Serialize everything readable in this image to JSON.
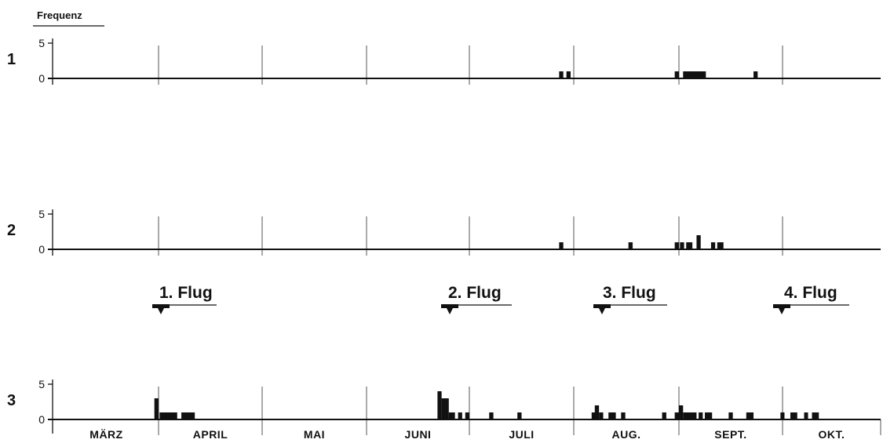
{
  "chart_data": {
    "type": "bar",
    "y_axis_title": "Frequenz",
    "months": [
      "MÄRZ",
      "APRIL",
      "MAI",
      "JUNI",
      "JULI",
      "AUG.",
      "SEPT.",
      "OKT."
    ],
    "flights": [
      "1. Flug",
      "2. Flug",
      "3. Flug",
      "4. Flug"
    ],
    "panels": [
      {
        "label": "1",
        "ylim": [
          0,
          5
        ],
        "yticks": [
          "5",
          "0"
        ],
        "bars": [
          {
            "x": 4.86,
            "w": 0.04,
            "v": 1
          },
          {
            "x": 4.93,
            "w": 0.04,
            "v": 1
          },
          {
            "x": 5.96,
            "w": 0.04,
            "v": 1
          },
          {
            "x": 6.04,
            "w": 0.22,
            "v": 1
          },
          {
            "x": 6.72,
            "w": 0.04,
            "v": 1
          }
        ]
      },
      {
        "label": "2",
        "ylim": [
          0,
          5
        ],
        "yticks": [
          "5",
          "0"
        ],
        "bars": [
          {
            "x": 4.86,
            "w": 0.04,
            "v": 1
          },
          {
            "x": 5.52,
            "w": 0.04,
            "v": 1
          },
          {
            "x": 5.96,
            "w": 0.04,
            "v": 1
          },
          {
            "x": 6.01,
            "w": 0.04,
            "v": 1
          },
          {
            "x": 6.07,
            "w": 0.06,
            "v": 1
          },
          {
            "x": 6.17,
            "w": 0.04,
            "v": 2
          },
          {
            "x": 6.31,
            "w": 0.04,
            "v": 1
          },
          {
            "x": 6.37,
            "w": 0.06,
            "v": 1
          }
        ]
      },
      {
        "label": "3",
        "ylim": [
          0,
          5
        ],
        "yticks": [
          "5",
          "0"
        ],
        "bars": [
          {
            "x": 0.96,
            "w": 0.04,
            "v": 3
          },
          {
            "x": 1.01,
            "w": 0.17,
            "v": 1
          },
          {
            "x": 1.22,
            "w": 0.13,
            "v": 1
          },
          {
            "x": 3.69,
            "w": 0.04,
            "v": 4
          },
          {
            "x": 3.73,
            "w": 0.07,
            "v": 3
          },
          {
            "x": 3.8,
            "w": 0.06,
            "v": 1
          },
          {
            "x": 3.89,
            "w": 0.04,
            "v": 1
          },
          {
            "x": 3.96,
            "w": 0.04,
            "v": 1
          },
          {
            "x": 4.19,
            "w": 0.04,
            "v": 1
          },
          {
            "x": 4.46,
            "w": 0.04,
            "v": 1
          },
          {
            "x": 5.17,
            "w": 0.04,
            "v": 1
          },
          {
            "x": 5.2,
            "w": 0.04,
            "v": 2
          },
          {
            "x": 5.24,
            "w": 0.04,
            "v": 1
          },
          {
            "x": 5.33,
            "w": 0.07,
            "v": 1
          },
          {
            "x": 5.45,
            "w": 0.04,
            "v": 1
          },
          {
            "x": 5.84,
            "w": 0.04,
            "v": 1
          },
          {
            "x": 5.96,
            "w": 0.04,
            "v": 1
          },
          {
            "x": 6.0,
            "w": 0.04,
            "v": 2
          },
          {
            "x": 6.04,
            "w": 0.13,
            "v": 1
          },
          {
            "x": 6.19,
            "w": 0.04,
            "v": 1
          },
          {
            "x": 6.25,
            "w": 0.07,
            "v": 1
          },
          {
            "x": 6.48,
            "w": 0.04,
            "v": 1
          },
          {
            "x": 6.65,
            "w": 0.07,
            "v": 1
          },
          {
            "x": 6.98,
            "w": 0.04,
            "v": 1
          },
          {
            "x": 7.08,
            "w": 0.07,
            "v": 1
          },
          {
            "x": 7.22,
            "w": 0.04,
            "v": 1
          },
          {
            "x": 7.3,
            "w": 0.07,
            "v": 1
          }
        ]
      }
    ]
  }
}
